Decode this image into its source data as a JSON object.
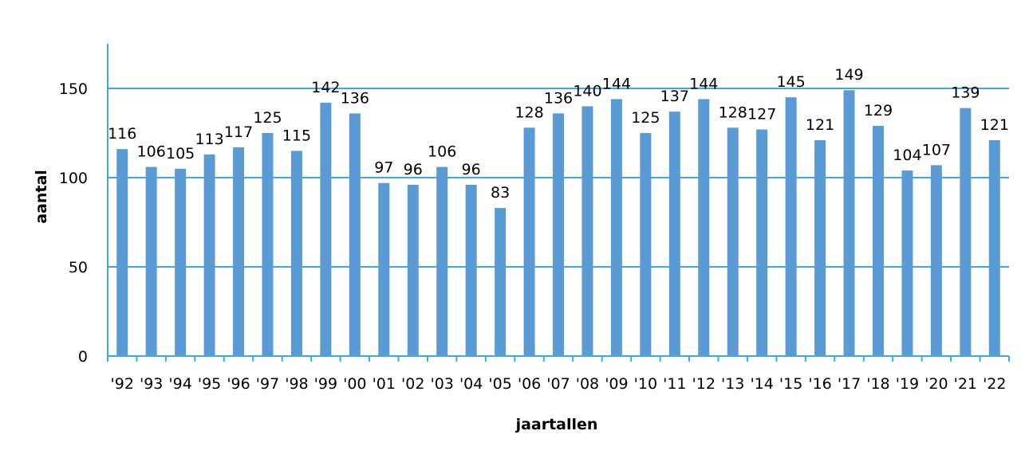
{
  "chart_data": {
    "type": "bar",
    "title": "",
    "xlabel": "jaartallen",
    "ylabel": "aantal",
    "categories": [
      "'92",
      "'93",
      "'94",
      "'95",
      "'96",
      "'97",
      "'98",
      "'99",
      "'00",
      "'01",
      "'02",
      "'03",
      "'04",
      "'05",
      "'06",
      "'07",
      "'08",
      "'09",
      "'10",
      "'11",
      "'12",
      "'13",
      "'14",
      "'15",
      "'16",
      "'17",
      "'18",
      "'19",
      "'20",
      "'21",
      "'22"
    ],
    "values": [
      116,
      106,
      105,
      113,
      117,
      125,
      115,
      142,
      136,
      97,
      96,
      106,
      96,
      83,
      128,
      136,
      140,
      144,
      125,
      137,
      144,
      128,
      127,
      145,
      121,
      149,
      129,
      104,
      107,
      139,
      121
    ],
    "ylim": [
      0,
      175
    ],
    "yticks": [
      0,
      50,
      100,
      150
    ],
    "grid": true,
    "legend": "none",
    "colors": {
      "bar": "#5b9bd5",
      "axis": "#3fa9e0",
      "grid": "#3fa9e0"
    }
  }
}
